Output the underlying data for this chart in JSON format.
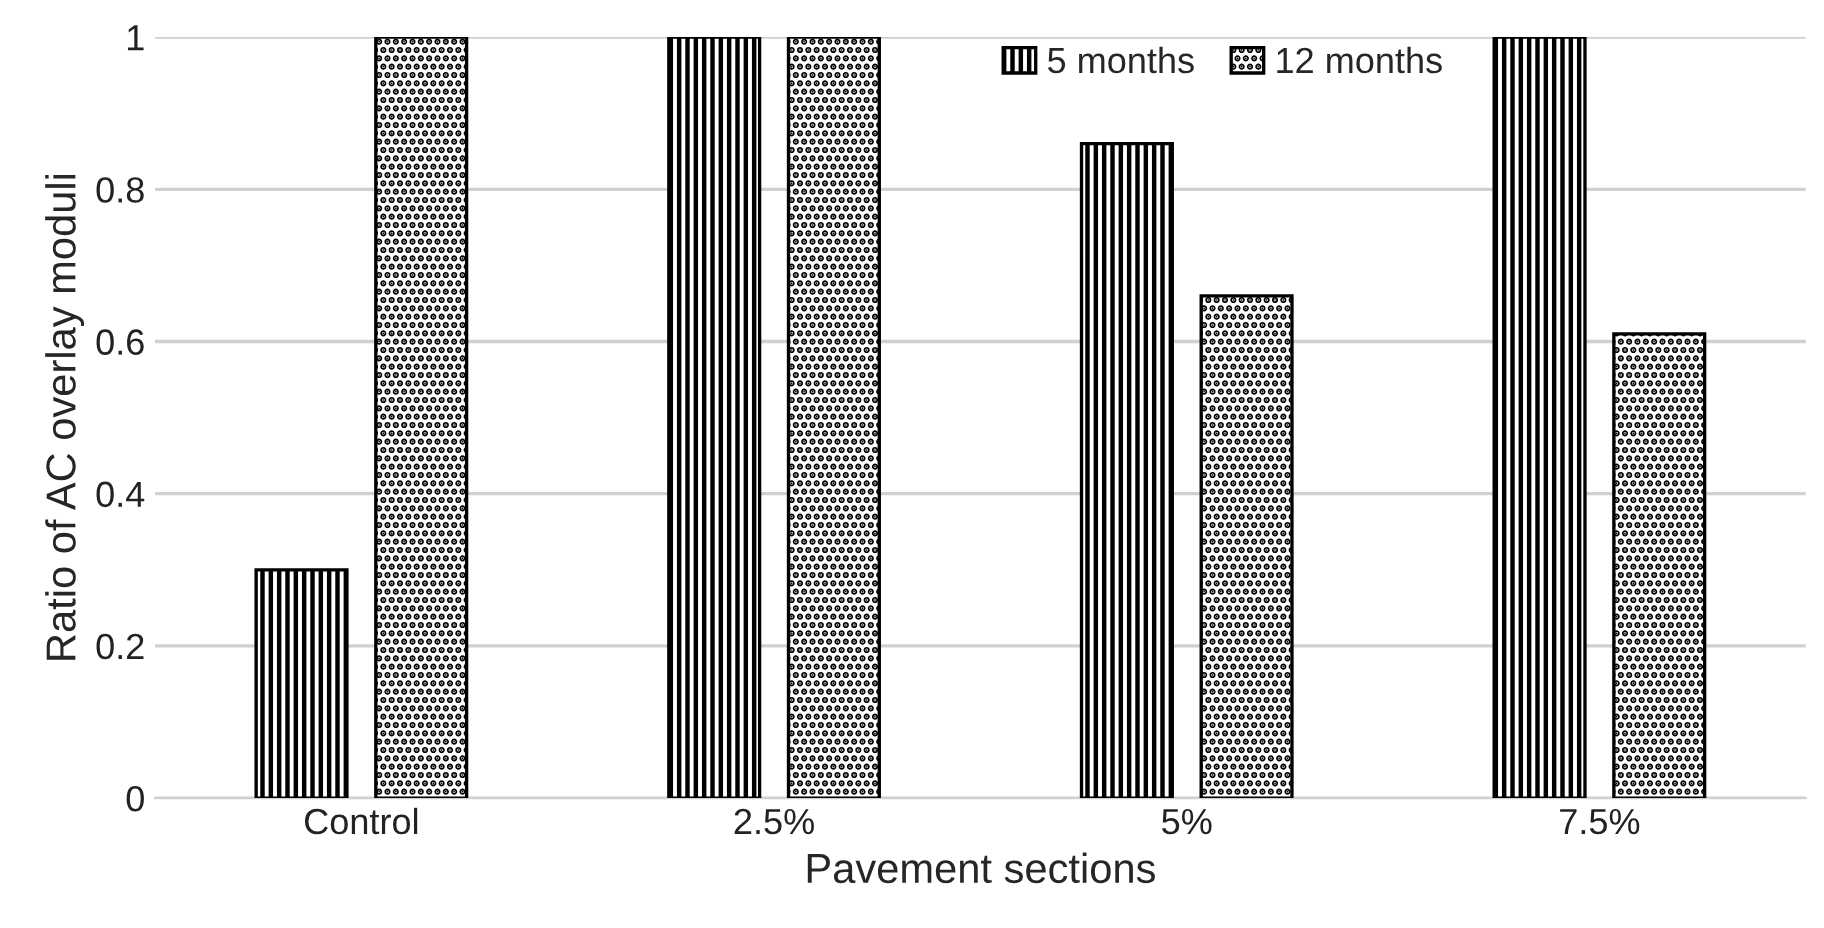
{
  "chart_data": {
    "type": "bar",
    "xlabel": "Pavement sections",
    "ylabel": "Ratio of AC overlay moduli",
    "categories": [
      "Control",
      "2.5%",
      "5%",
      "7.5%"
    ],
    "series": [
      {
        "name": "5 months",
        "color": "#000000",
        "values": [
          0.3,
          1,
          0.86,
          1
        ]
      },
      {
        "name": "12 months",
        "color": "#000000",
        "values": [
          1,
          1,
          0.66,
          0.61
        ]
      }
    ],
    "ylim": [
      0,
      1
    ],
    "yticks": [
      0,
      0.2,
      0.4,
      0.6,
      0.8,
      1
    ],
    "grid": "y",
    "legend": "top right"
  }
}
